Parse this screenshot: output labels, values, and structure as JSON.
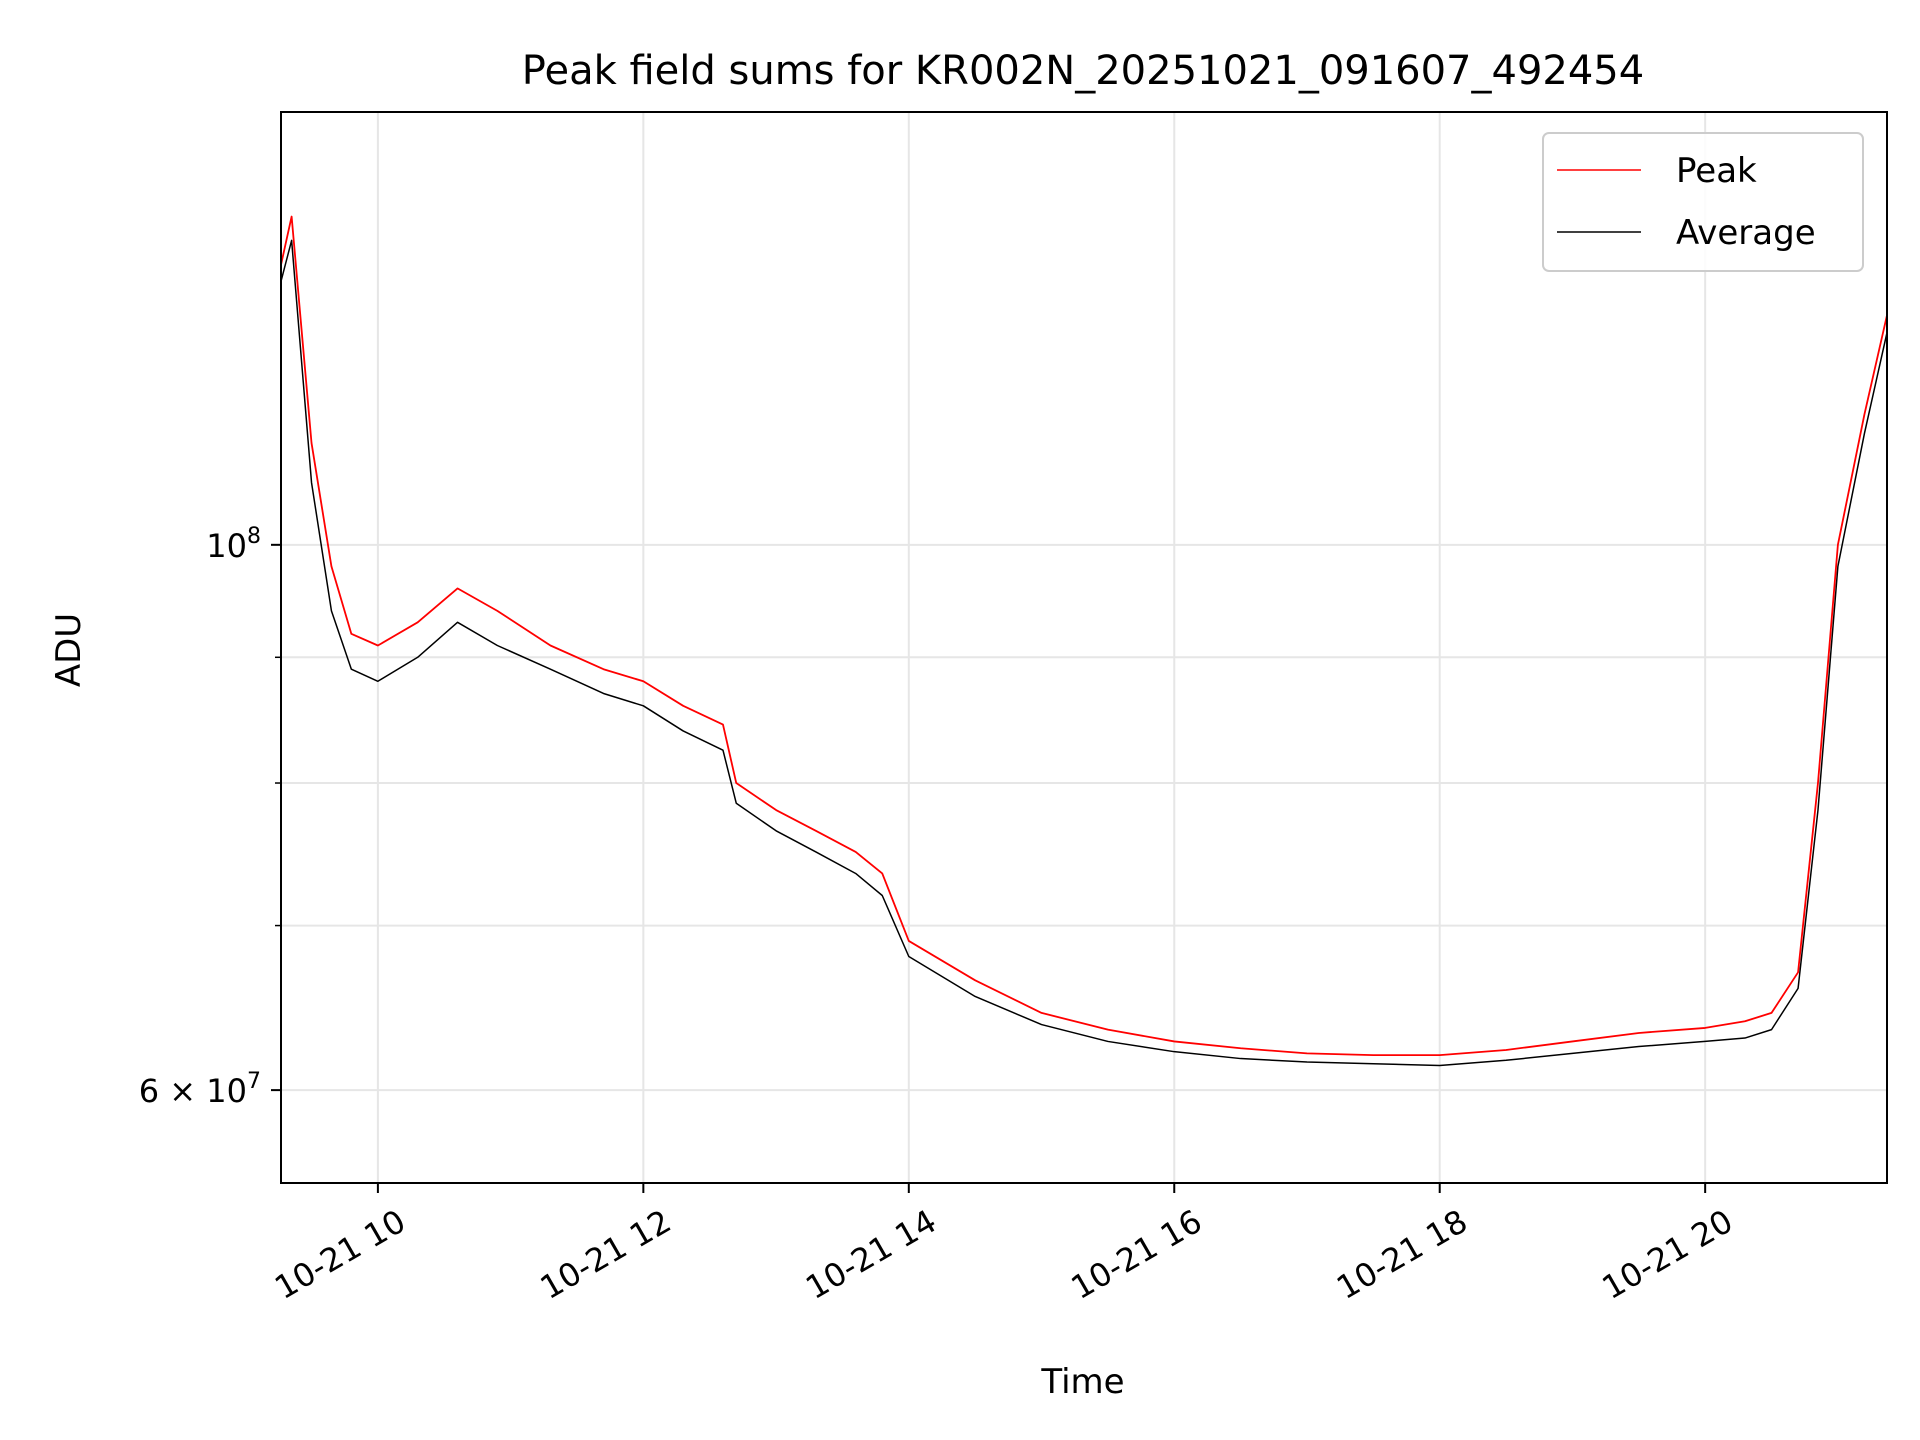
{
  "chart_data": {
    "type": "line",
    "title": "Peak field sums for KR002N_20251021_091607_492454",
    "xlabel": "Time",
    "ylabel": "ADU",
    "yscale": "log",
    "xlim_hours": [
      9.27,
      21.37
    ],
    "ylim": [
      55000000,
      150000000
    ],
    "x_ticks": [
      {
        "value": 10,
        "label": "10-21 10"
      },
      {
        "value": 12,
        "label": "10-21 12"
      },
      {
        "value": 14,
        "label": "10-21 14"
      },
      {
        "value": 16,
        "label": "10-21 16"
      },
      {
        "value": 18,
        "label": "10-21 18"
      },
      {
        "value": 20,
        "label": "10-21 20"
      }
    ],
    "y_major_ticks": [
      {
        "value": 100000000,
        "label_base": "10",
        "label_exp": "8"
      },
      {
        "value": 60000000,
        "label_base": "6 × 10",
        "label_exp": "7"
      }
    ],
    "y_minor_ticks": [
      70000000,
      80000000,
      90000000
    ],
    "grid": true,
    "legend": {
      "position": "top-right",
      "entries": [
        "Peak",
        "Average"
      ]
    },
    "series": [
      {
        "name": "Peak",
        "color": "#ff0000",
        "x": [
          9.27,
          9.35,
          9.5,
          9.65,
          9.8,
          10.0,
          10.3,
          10.6,
          10.9,
          11.3,
          11.7,
          12.0,
          12.3,
          12.6,
          12.7,
          13.0,
          13.3,
          13.6,
          13.8,
          14.0,
          14.5,
          15.0,
          15.5,
          16.0,
          16.5,
          17.0,
          17.5,
          18.0,
          18.5,
          19.0,
          19.5,
          20.0,
          20.3,
          20.5,
          20.7,
          20.85,
          21.0,
          21.2,
          21.37
        ],
        "values": [
          130000000,
          136000000,
          110000000,
          98000000,
          92000000,
          91000000,
          93000000,
          96000000,
          94000000,
          91000000,
          89000000,
          88000000,
          86000000,
          84500000,
          80000000,
          78000000,
          76500000,
          75000000,
          73500000,
          69000000,
          66500000,
          64500000,
          63500000,
          62800000,
          62400000,
          62100000,
          62000000,
          62000000,
          62300000,
          62800000,
          63300000,
          63600000,
          64000000,
          64500000,
          67000000,
          80000000,
          100000000,
          113000000,
          124000000
        ]
      },
      {
        "name": "Average",
        "color": "#000000",
        "x": [
          9.27,
          9.35,
          9.5,
          9.65,
          9.8,
          10.0,
          10.3,
          10.6,
          10.9,
          11.3,
          11.7,
          12.0,
          12.3,
          12.6,
          12.7,
          13.0,
          13.3,
          13.6,
          13.8,
          14.0,
          14.5,
          15.0,
          15.5,
          16.0,
          16.5,
          17.0,
          17.5,
          18.0,
          18.5,
          19.0,
          19.5,
          20.0,
          20.3,
          20.5,
          20.7,
          20.85,
          21.0,
          21.2,
          21.37
        ],
        "values": [
          128000000,
          133000000,
          106000000,
          94000000,
          89000000,
          88000000,
          90000000,
          93000000,
          91000000,
          89000000,
          87000000,
          86000000,
          84000000,
          82500000,
          78500000,
          76500000,
          75000000,
          73500000,
          72000000,
          68000000,
          65500000,
          63800000,
          62800000,
          62200000,
          61800000,
          61600000,
          61500000,
          61400000,
          61700000,
          62100000,
          62500000,
          62800000,
          63000000,
          63500000,
          66000000,
          78000000,
          98000000,
          111000000,
          122000000
        ]
      }
    ]
  }
}
